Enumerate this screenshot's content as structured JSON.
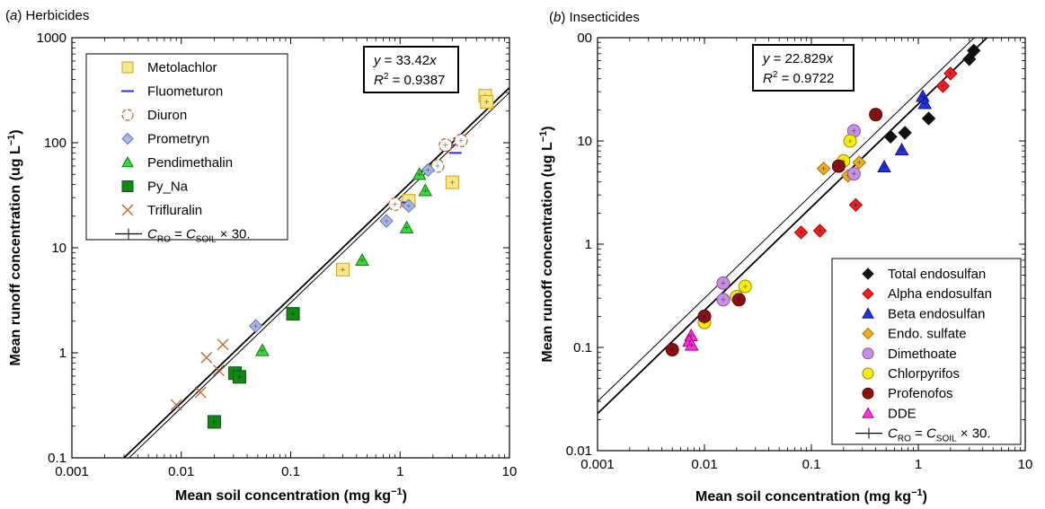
{
  "chart_data": [
    {
      "type": "scatter",
      "panel_label": "(a)",
      "title": "Herbicides",
      "xlabel": "Mean soil concentration (mg kg⁻¹)",
      "ylabel": "Mean runoff concentration (ug L⁻¹)",
      "x_scale": "log",
      "y_scale": "log",
      "xlim": [
        0.001,
        10
      ],
      "ylim": [
        0.1,
        1000
      ],
      "x_ticks": [
        "0.001",
        "0.01",
        "0.1",
        "1",
        "10"
      ],
      "y_ticks": [
        "0.1",
        "1",
        "10",
        "100",
        "1000"
      ],
      "grid": false,
      "legend_position": "top-left",
      "annotation": {
        "line1_a": "y",
        "line1_b": " = 33.42",
        "line1_c": "x",
        "r2_a": "R",
        "r2_sup": "2",
        "r2_b": " = 0.9387"
      },
      "reference_line": {
        "legend_label_a": "C",
        "legend_sub_a": "RO",
        "legend_label_b": " = C",
        "legend_sub_b": "SOIL",
        "legend_label_c": " × 30.",
        "slope": 30
      },
      "fit_line": {
        "slope": 33.42
      },
      "series": [
        {
          "name": "Metolachlor",
          "marker": "square",
          "color": "#f5e98a",
          "edge": "#d4a017",
          "points": [
            [
              6.0,
              280
            ],
            [
              6.2,
              245
            ],
            [
              3.0,
              42
            ],
            [
              1.2,
              28
            ],
            [
              0.3,
              6.2
            ]
          ]
        },
        {
          "name": "Fluometuron",
          "marker": "dash",
          "color": "#2233cc",
          "edge": "#2233cc",
          "points": [
            [
              3.2,
              80
            ],
            [
              2.8,
              95
            ],
            [
              3.5,
              110
            ],
            [
              1.1,
              27
            ]
          ]
        },
        {
          "name": "Diuron",
          "marker": "circle-open",
          "color": "#ffffff",
          "edge": "#c0622c",
          "points": [
            [
              2.6,
              95
            ],
            [
              3.6,
              105
            ],
            [
              2.2,
              60
            ],
            [
              0.9,
              26
            ]
          ]
        },
        {
          "name": "Prometryn",
          "marker": "diamond",
          "color": "#a8b8ee",
          "edge": "#6677aa",
          "points": [
            [
              1.8,
              55
            ],
            [
              1.2,
              25
            ],
            [
              0.75,
              18
            ],
            [
              0.048,
              1.8
            ]
          ]
        },
        {
          "name": "Pendimethalin",
          "marker": "triangle",
          "color": "#33dd33",
          "edge": "#117711",
          "points": [
            [
              1.5,
              50
            ],
            [
              1.7,
              35
            ],
            [
              1.15,
              15.5
            ],
            [
              0.45,
              7.6
            ],
            [
              0.055,
              1.05
            ]
          ]
        },
        {
          "name": "Py_Na",
          "marker": "square-filled",
          "color": "#118811",
          "edge": "#0a5a0a",
          "points": [
            [
              0.105,
              2.35
            ],
            [
              0.031,
              0.64
            ],
            [
              0.034,
              0.59
            ],
            [
              0.02,
              0.22
            ]
          ]
        },
        {
          "name": "Trifluralin",
          "marker": "x",
          "color": "#c0622c",
          "edge": "#c0622c",
          "points": [
            [
              0.024,
              1.2
            ],
            [
              0.017,
              0.9
            ],
            [
              0.022,
              0.68
            ],
            [
              0.015,
              0.42
            ],
            [
              0.009,
              0.32
            ]
          ]
        }
      ]
    },
    {
      "type": "scatter",
      "panel_label": "(b)",
      "title": "Insecticides",
      "xlabel": "Mean soil concentration (mg kg⁻¹)",
      "ylabel": "Mean runoff concentration (ug L⁻¹)",
      "x_scale": "log",
      "y_scale": "log",
      "xlim": [
        0.001,
        10
      ],
      "ylim": [
        0.01,
        100
      ],
      "x_ticks": [
        "0.001",
        "0.01",
        "0.1",
        "1",
        "10"
      ],
      "y_ticks": [
        "0.01",
        "0.1",
        "1",
        "10",
        "00"
      ],
      "grid": false,
      "legend_position": "bottom-right",
      "annotation": {
        "line1_a": "y",
        "line1_b": " = 22.829",
        "line1_c": "x",
        "r2_a": "R",
        "r2_sup": "2",
        "r2_b": " = 0.9722"
      },
      "reference_line": {
        "legend_label_a": "C",
        "legend_sub_a": "RO",
        "legend_label_b": " = C",
        "legend_sub_b": "SOIL",
        "legend_label_c": " × 30.",
        "slope": 30
      },
      "fit_line": {
        "slope": 22.829
      },
      "series": [
        {
          "name": "Total endosulfan",
          "marker": "diamond",
          "color": "#111111",
          "edge": "#111111",
          "points": [
            [
              3.3,
              75
            ],
            [
              3.0,
              62
            ],
            [
              1.25,
              16.5
            ],
            [
              0.75,
              12
            ],
            [
              0.55,
              11
            ]
          ]
        },
        {
          "name": "Alpha endosulfan",
          "marker": "diamond",
          "color": "#ee2222",
          "edge": "#aa0000",
          "points": [
            [
              2.0,
              45
            ],
            [
              1.7,
              34
            ],
            [
              0.26,
              2.4
            ],
            [
              0.12,
              1.35
            ],
            [
              0.08,
              1.3
            ]
          ]
        },
        {
          "name": "Beta endosulfan",
          "marker": "triangle",
          "color": "#2233dd",
          "edge": "#111188",
          "points": [
            [
              1.1,
              27
            ],
            [
              1.15,
              23
            ],
            [
              0.7,
              8.2
            ],
            [
              0.48,
              5.6
            ]
          ]
        },
        {
          "name": "Endo. sulfate",
          "marker": "diamond",
          "color": "#f0b020",
          "edge": "#a07000",
          "points": [
            [
              0.28,
              6.2
            ],
            [
              0.13,
              5.4
            ],
            [
              0.22,
              4.6
            ]
          ]
        },
        {
          "name": "Dimethoate",
          "marker": "circle",
          "color": "#c890e0",
          "edge": "#8a50a0",
          "points": [
            [
              0.25,
              12.5
            ],
            [
              0.25,
              4.8
            ],
            [
              0.015,
              0.42
            ],
            [
              0.015,
              0.29
            ]
          ]
        },
        {
          "name": "Chlorpyrifos",
          "marker": "circle",
          "color": "#f5f000",
          "edge": "#a08800",
          "points": [
            [
              0.23,
              10
            ],
            [
              0.2,
              6.4
            ],
            [
              0.024,
              0.39
            ],
            [
              0.02,
              0.31
            ],
            [
              0.01,
              0.175
            ]
          ]
        },
        {
          "name": "Profenofos",
          "marker": "circle",
          "color": "#8b1010",
          "edge": "#5a0000",
          "points": [
            [
              0.4,
              18
            ],
            [
              0.18,
              5.7
            ],
            [
              0.021,
              0.29
            ],
            [
              0.01,
              0.2
            ],
            [
              0.005,
              0.095
            ]
          ]
        },
        {
          "name": "DDE",
          "marker": "triangle",
          "color": "#ff33dd",
          "edge": "#aa0088",
          "points": [
            [
              0.0075,
              0.13
            ],
            [
              0.0072,
              0.115
            ],
            [
              0.0076,
              0.105
            ]
          ]
        }
      ]
    }
  ]
}
